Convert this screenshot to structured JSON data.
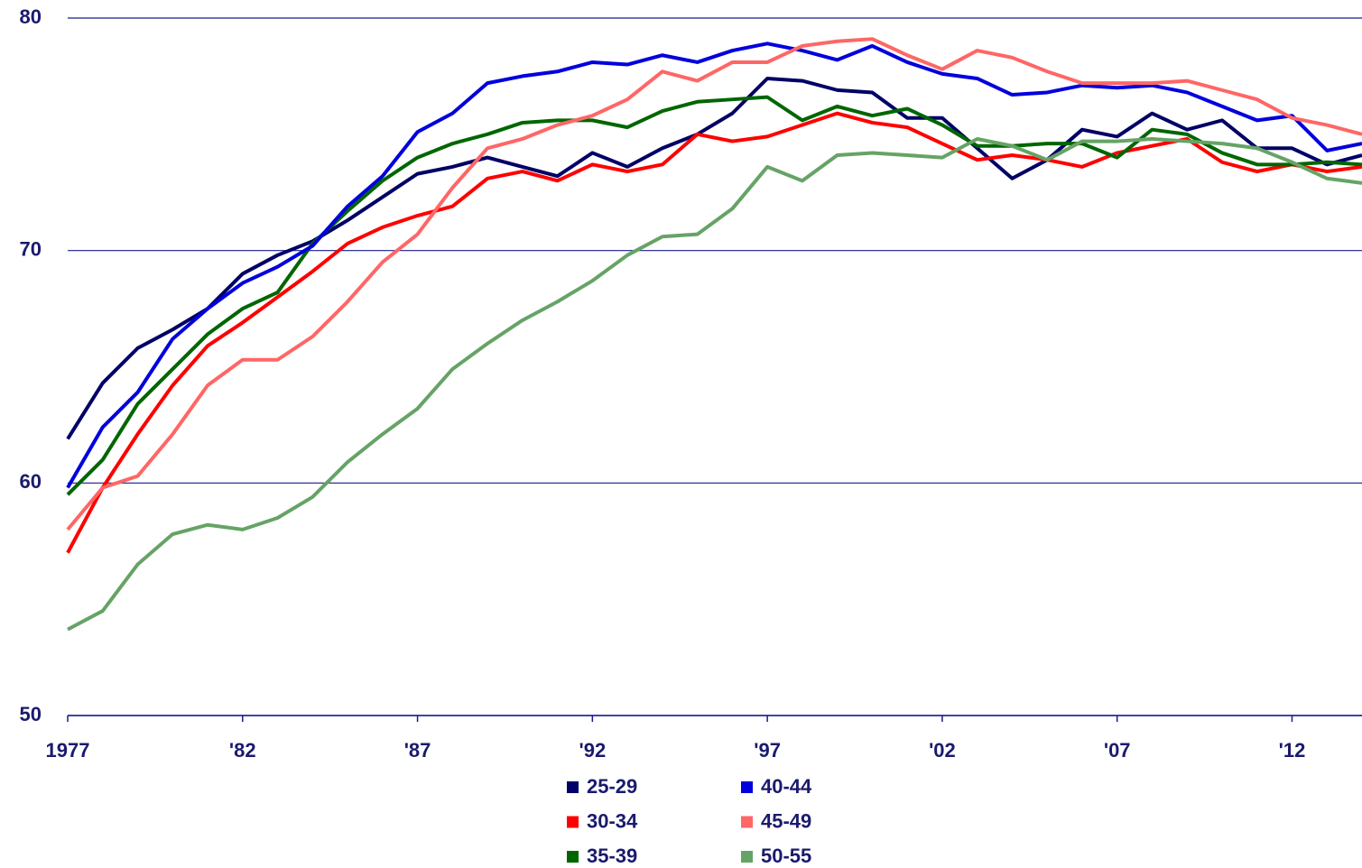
{
  "chart_data": {
    "type": "line",
    "x": [
      1977,
      1978,
      1979,
      1980,
      1981,
      1982,
      1983,
      1984,
      1985,
      1986,
      1987,
      1988,
      1989,
      1990,
      1991,
      1992,
      1993,
      1994,
      1995,
      1996,
      1997,
      1998,
      1999,
      2000,
      2001,
      2002,
      2003,
      2004,
      2005,
      2006,
      2007,
      2008,
      2009,
      2010,
      2011,
      2012,
      2013,
      2014
    ],
    "xlim": [
      1977,
      2014
    ],
    "xticks": [
      1977,
      {
        "value": 1982,
        "label": "'82"
      },
      {
        "value": 1987,
        "label": "'87"
      },
      {
        "value": 1992,
        "label": "'92"
      },
      {
        "value": 1997,
        "label": "'97"
      },
      {
        "value": 2002,
        "label": "'02"
      },
      {
        "value": 2007,
        "label": "'07"
      },
      {
        "value": 2012,
        "label": "'12"
      }
    ],
    "ylim": [
      50,
      80
    ],
    "yticks": [
      50,
      60,
      70,
      80
    ],
    "grid": true,
    "series": [
      {
        "name": "25-29",
        "color": "#000066",
        "values": [
          61.9,
          64.3,
          65.8,
          66.6,
          67.5,
          69.0,
          69.8,
          70.4,
          71.3,
          72.3,
          73.3,
          73.6,
          74.0,
          73.6,
          73.2,
          74.2,
          73.6,
          74.4,
          75.0,
          75.9,
          77.4,
          77.3,
          76.9,
          76.8,
          75.7,
          75.7,
          74.4,
          73.1,
          73.9,
          75.2,
          74.9,
          75.9,
          75.2,
          75.6,
          74.4,
          74.4,
          73.7,
          74.1
        ]
      },
      {
        "name": "30-34",
        "color": "#ff0000",
        "values": [
          57.0,
          59.8,
          62.1,
          64.2,
          65.9,
          66.9,
          68.0,
          69.1,
          70.3,
          71.0,
          71.5,
          71.9,
          73.1,
          73.4,
          73.0,
          73.7,
          73.4,
          73.7,
          75.0,
          74.7,
          74.9,
          75.4,
          75.9,
          75.5,
          75.3,
          74.6,
          73.9,
          74.1,
          73.9,
          73.6,
          74.2,
          74.5,
          74.8,
          73.8,
          73.4,
          73.7,
          73.4,
          73.6
        ]
      },
      {
        "name": "35-39",
        "color": "#006600",
        "values": [
          59.5,
          61.0,
          63.4,
          64.9,
          66.4,
          67.5,
          68.2,
          70.3,
          71.7,
          73.0,
          74.0,
          74.6,
          75.0,
          75.5,
          75.6,
          75.6,
          75.3,
          76.0,
          76.4,
          76.5,
          76.6,
          75.6,
          76.2,
          75.8,
          76.1,
          75.4,
          74.5,
          74.5,
          74.6,
          74.6,
          74.0,
          75.2,
          75.0,
          74.2,
          73.7,
          73.7,
          73.8,
          73.7
        ]
      },
      {
        "name": "40-44",
        "color": "#0000dd",
        "values": [
          59.8,
          62.4,
          63.9,
          66.2,
          67.5,
          68.6,
          69.3,
          70.2,
          71.9,
          73.2,
          75.1,
          75.9,
          77.2,
          77.5,
          77.7,
          78.1,
          78.0,
          78.4,
          78.1,
          78.6,
          78.9,
          78.6,
          78.2,
          78.8,
          78.1,
          77.6,
          77.4,
          76.7,
          76.8,
          77.1,
          77.0,
          77.1,
          76.8,
          76.2,
          75.6,
          75.8,
          74.3,
          74.6
        ]
      },
      {
        "name": "45-49",
        "color": "#ff6666",
        "values": [
          58.0,
          59.8,
          60.3,
          62.1,
          64.2,
          65.3,
          65.3,
          66.3,
          67.8,
          69.5,
          70.7,
          72.7,
          74.4,
          74.8,
          75.4,
          75.8,
          76.5,
          77.7,
          77.3,
          78.1,
          78.1,
          78.8,
          79.0,
          79.1,
          78.4,
          77.8,
          78.6,
          78.3,
          77.7,
          77.2,
          77.2,
          77.2,
          77.3,
          76.9,
          76.5,
          75.7,
          75.4,
          75.0
        ]
      },
      {
        "name": "50-55",
        "color": "#66a366",
        "values": [
          53.7,
          54.5,
          56.5,
          57.8,
          58.2,
          58.0,
          58.5,
          59.4,
          60.9,
          62.1,
          63.2,
          64.9,
          66.0,
          67.0,
          67.8,
          68.7,
          69.8,
          70.6,
          70.7,
          71.8,
          73.6,
          73.0,
          74.1,
          74.2,
          74.1,
          74.0,
          74.8,
          74.5,
          73.9,
          74.7,
          74.7,
          74.8,
          74.7,
          74.6,
          74.4,
          73.8,
          73.1,
          72.9
        ]
      }
    ]
  }
}
